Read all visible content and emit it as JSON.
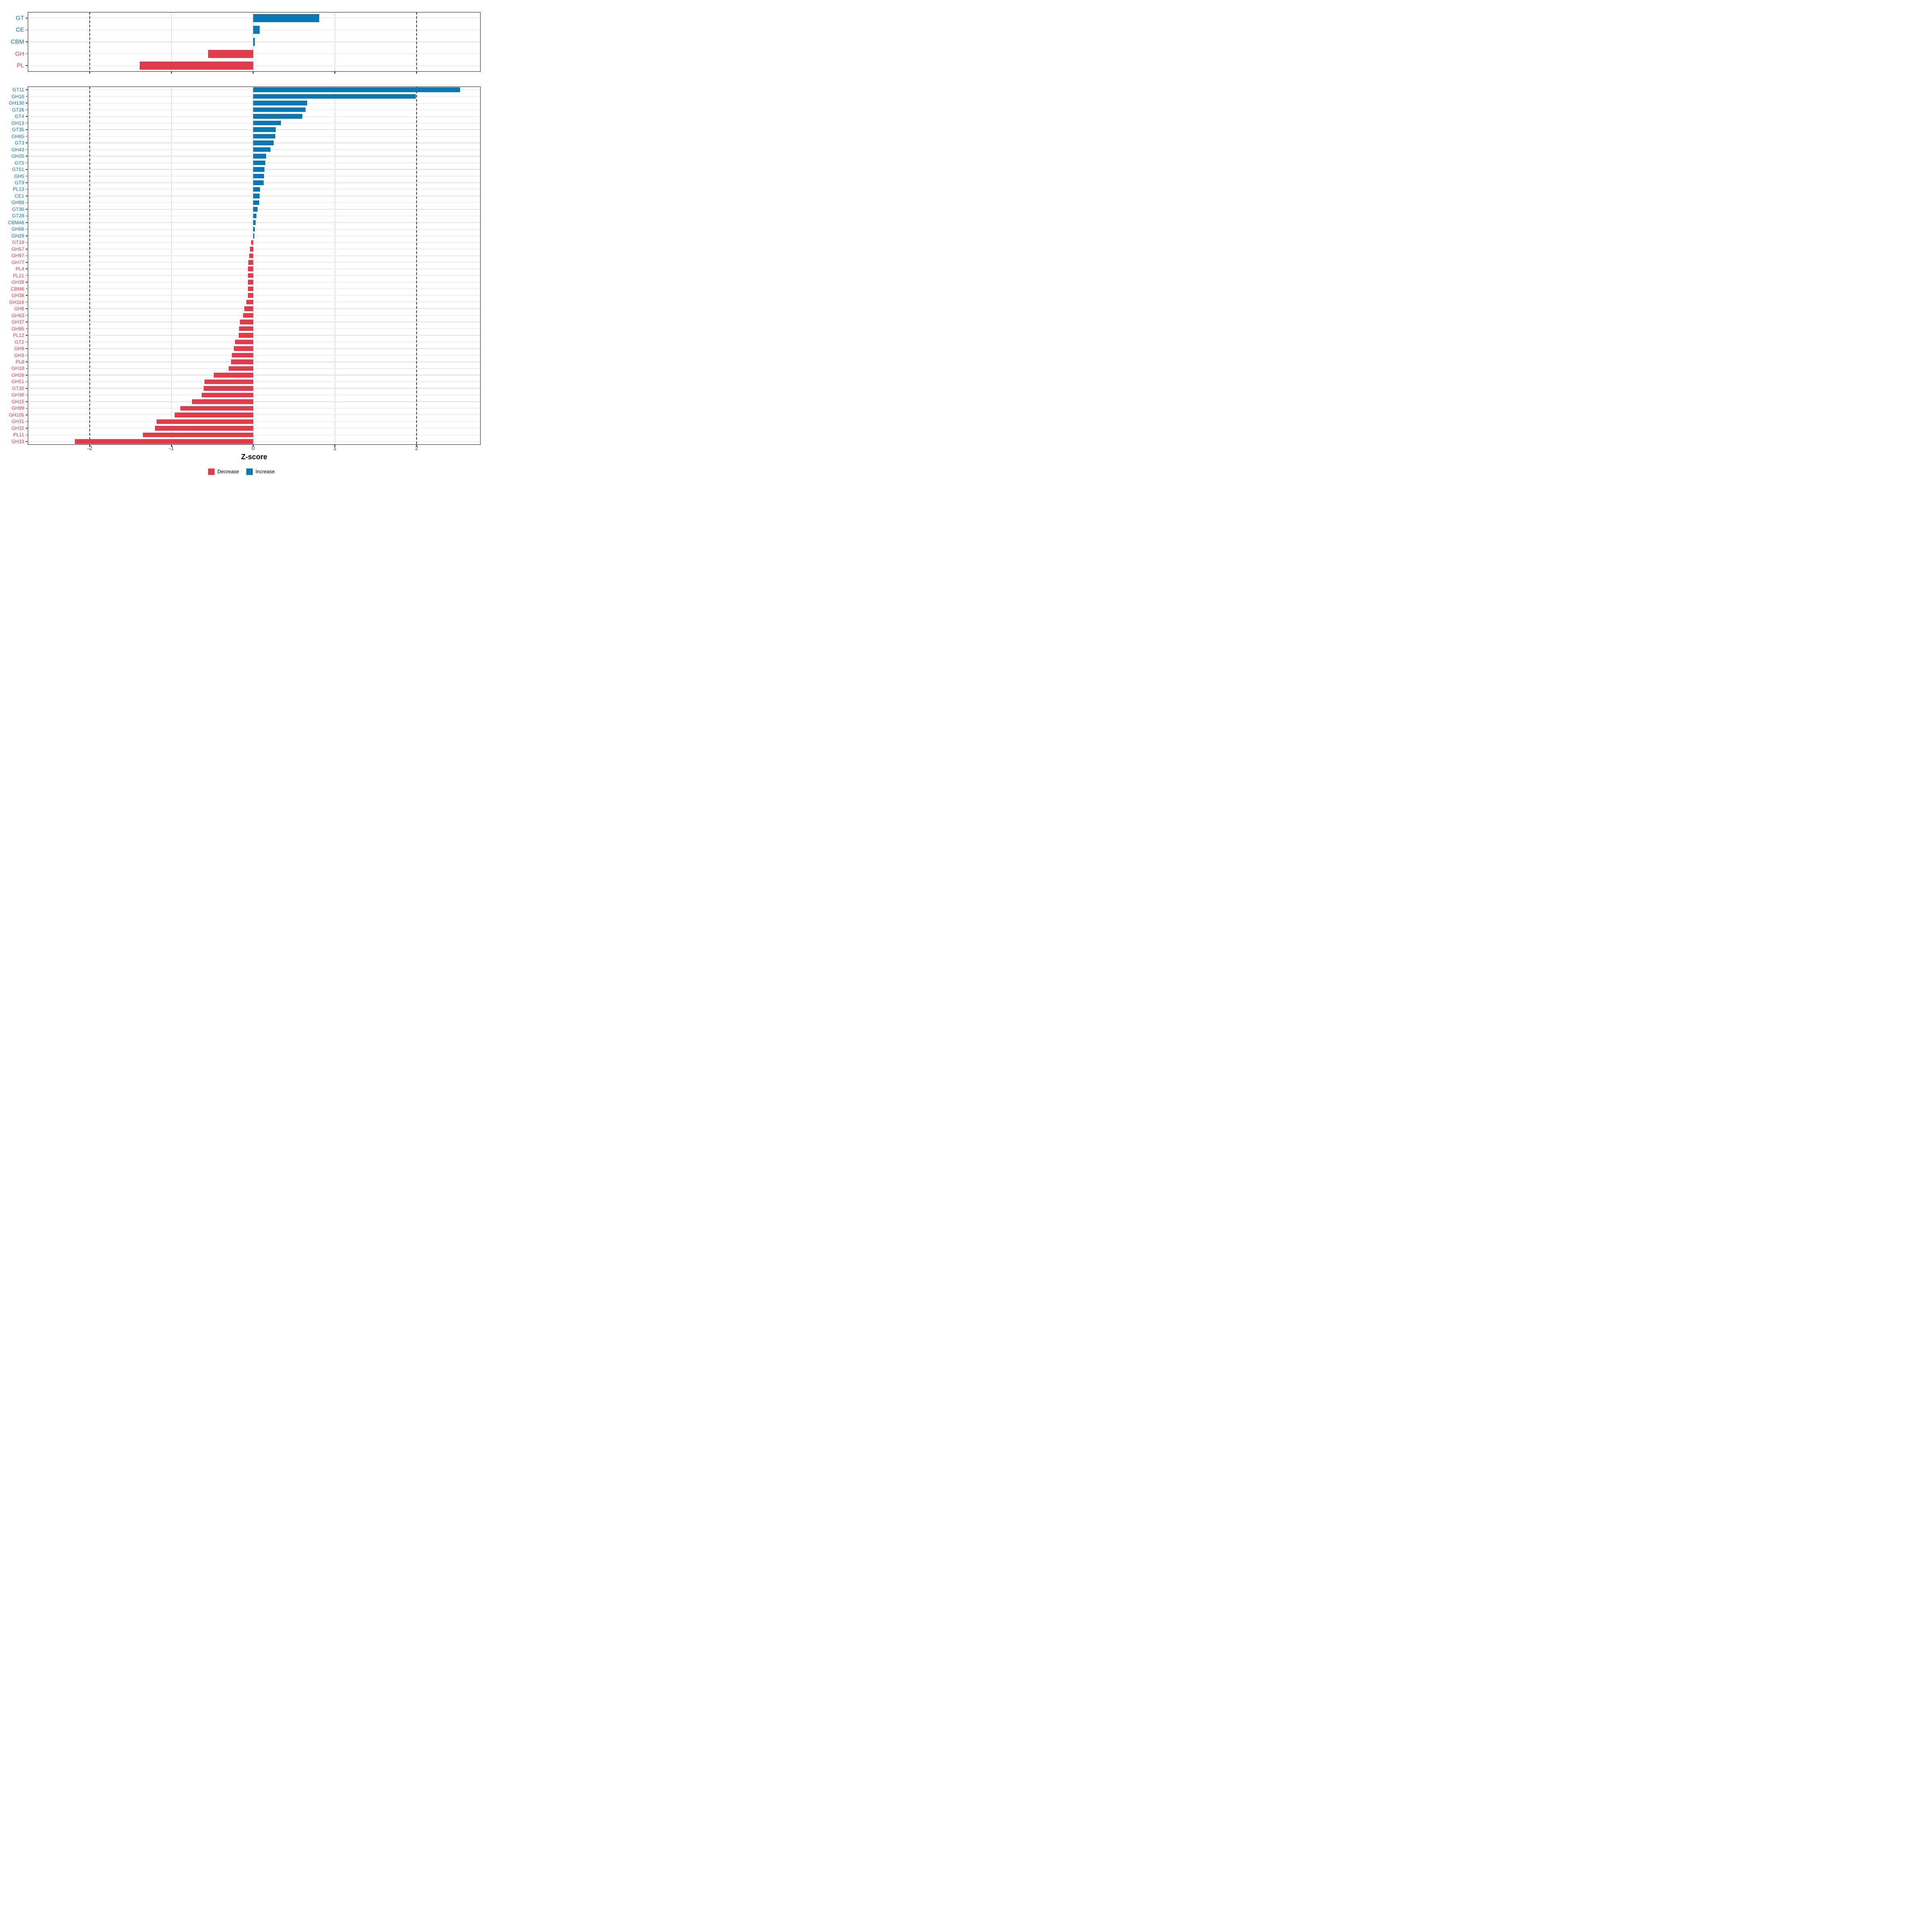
{
  "chart_data": {
    "type": "bar",
    "orientation": "horizontal",
    "title": "",
    "xlabel": "Z-score",
    "x_tick_labels": [
      "-2",
      "-1",
      "0",
      "1",
      "2"
    ],
    "x_tick_values": [
      -2,
      -1,
      0,
      1,
      2
    ],
    "x_range": [
      -2.76,
      2.78
    ],
    "dashed_reference_lines": [
      -2,
      2
    ],
    "grid": true,
    "colors": {
      "increase": "#0878b4",
      "decrease": "#e43a4b",
      "gridline": "#e2e2e2",
      "dashed_line": "#3f3f3f",
      "panel_border": "#1b1b1b",
      "tick_text": "#3c3c3c"
    },
    "legend": {
      "position": "bottom",
      "items": [
        {
          "label": "Decrease",
          "color": "#e43a4b"
        },
        {
          "label": "Increase",
          "color": "#0878b4"
        }
      ]
    },
    "panels": [
      {
        "name": "cazyme-classes",
        "categories": [
          "GT",
          "CE",
          "CBM",
          "GH",
          "PL"
        ],
        "values": [
          0.81,
          0.08,
          0.02,
          -0.55,
          -1.39
        ]
      },
      {
        "name": "cazyme-families",
        "categories": [
          "GT11",
          "GH16",
          "GH130",
          "GT26",
          "GT4",
          "GH13",
          "GT35",
          "GH65",
          "GT3",
          "GH43",
          "GH20",
          "GT5",
          "GT51",
          "GH5",
          "GT9",
          "PL13",
          "CE1",
          "GH88",
          "GT30",
          "GT28",
          "CBM48",
          "GH66",
          "GH29",
          "GT19",
          "GH57",
          "GH97",
          "GH77",
          "PL4",
          "PL21",
          "GH39",
          "CBM6",
          "GH38",
          "GH116",
          "GH8",
          "GH63",
          "GH37",
          "GH95",
          "PL12",
          "GT2",
          "GH9",
          "GH3",
          "PL8",
          "GH18",
          "GH26",
          "GH51",
          "GT20",
          "GH30",
          "GH15",
          "GH99",
          "GH105",
          "GH31",
          "GH32",
          "PL11",
          "GH33"
        ],
        "values": [
          2.53,
          1.99,
          0.66,
          0.64,
          0.6,
          0.34,
          0.275,
          0.27,
          0.25,
          0.21,
          0.157,
          0.15,
          0.139,
          0.133,
          0.128,
          0.082,
          0.08,
          0.075,
          0.055,
          0.038,
          0.029,
          0.018,
          0.015,
          -0.025,
          -0.039,
          -0.049,
          -0.061,
          -0.062,
          -0.063,
          -0.064,
          -0.065,
          -0.066,
          -0.085,
          -0.108,
          -0.125,
          -0.161,
          -0.171,
          -0.176,
          -0.224,
          -0.236,
          -0.261,
          -0.272,
          -0.301,
          -0.485,
          -0.595,
          -0.605,
          -0.63,
          -0.75,
          -0.89,
          -0.96,
          -1.18,
          -1.2,
          -1.35,
          -2.18
        ]
      }
    ]
  }
}
